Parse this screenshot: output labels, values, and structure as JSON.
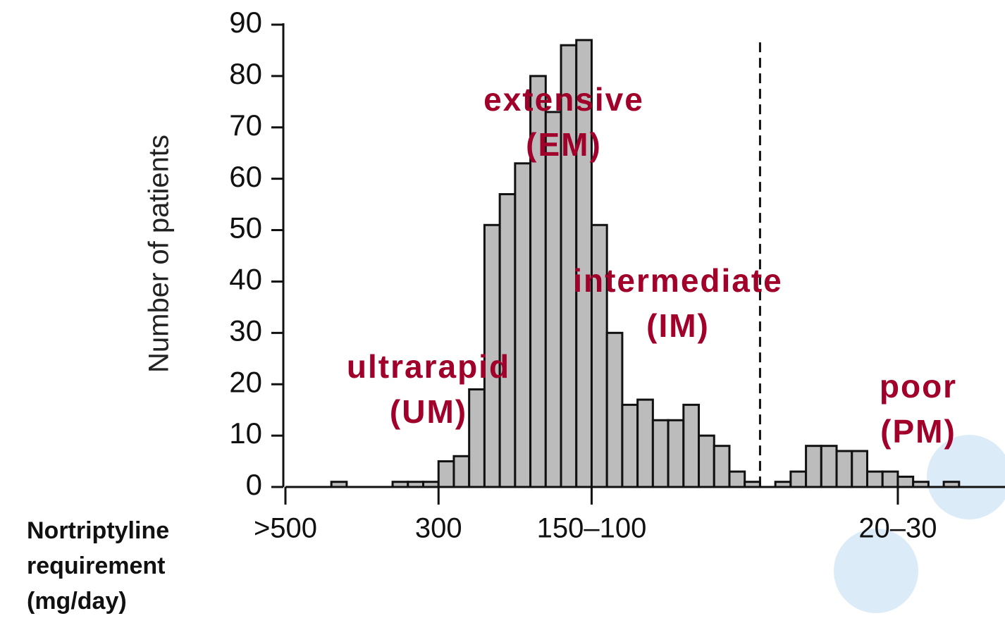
{
  "chart_data": {
    "type": "histogram",
    "ylabel": "Number of patients",
    "xlabel": [
      "Nortriptyline",
      "requirement",
      "(mg/day)"
    ],
    "bins": [
      0,
      1,
      2,
      3,
      4,
      5,
      6,
      7,
      8,
      9,
      10,
      11,
      12,
      13,
      14,
      15,
      16,
      17,
      18,
      19,
      20,
      21,
      22,
      23,
      24,
      25,
      26,
      27,
      28,
      29,
      30,
      31,
      32,
      33,
      34,
      35,
      36,
      37,
      38,
      39,
      40,
      41,
      42,
      43,
      44,
      45,
      46,
      47
    ],
    "values": [
      0,
      0,
      0,
      1,
      0,
      0,
      0,
      1,
      1,
      1,
      5,
      6,
      19,
      51,
      57,
      63,
      80,
      73,
      86,
      87,
      51,
      30,
      16,
      17,
      13,
      13,
      16,
      10,
      8,
      3,
      1,
      0,
      1,
      3,
      8,
      8,
      7,
      7,
      3,
      3,
      2,
      1,
      0,
      1,
      0,
      0,
      0
    ],
    "color": "#bcbcbc",
    "xlim": [
      0,
      47
    ],
    "ylim": [
      0,
      90
    ],
    "xticks": [
      {
        "value": 0,
        "label": ">500"
      },
      {
        "value": 10,
        "label": "300"
      },
      {
        "value": 20,
        "label": "150–100"
      },
      {
        "value": 40,
        "label": "20–30"
      }
    ],
    "yticks": [
      0,
      10,
      20,
      30,
      40,
      50,
      60,
      70,
      80,
      90
    ],
    "threshold": {
      "x": 31,
      "top": 86
    },
    "annotations": [
      [
        "extensive",
        "(EM)"
      ],
      [
        "intermediate",
        "(IM)"
      ],
      [
        "ultrarapid",
        "(UM)"
      ],
      [
        "poor",
        "(PM)"
      ]
    ],
    "annotation_color": "#a0002a"
  }
}
